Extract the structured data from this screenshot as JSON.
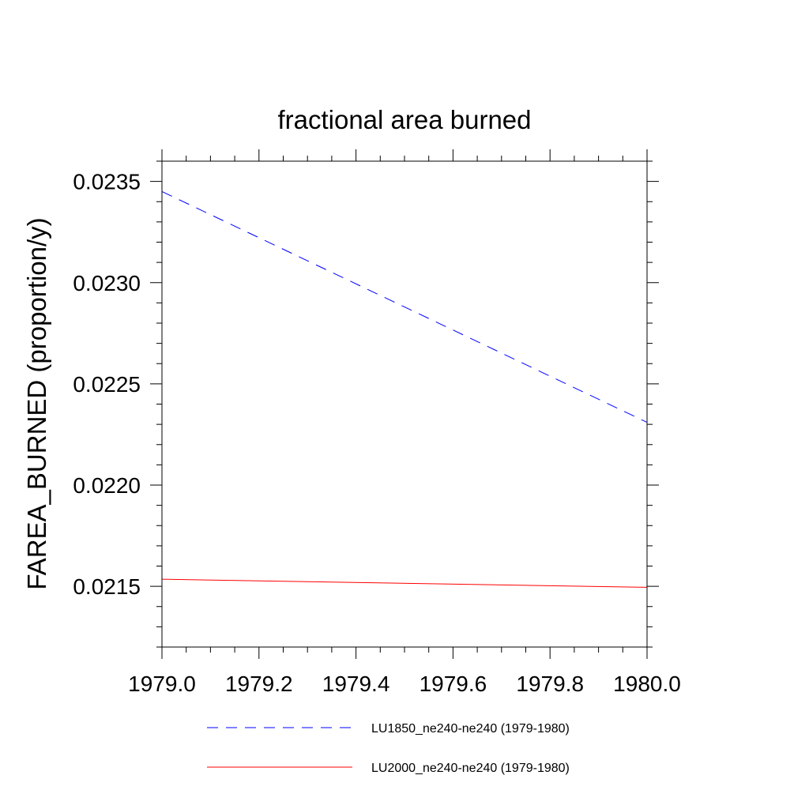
{
  "chart_data": {
    "type": "line",
    "title": "fractional area burned",
    "xlabel": "",
    "ylabel": "FAREA_BURNED  (proportion/y)",
    "xlim": [
      1979.0,
      1980.0
    ],
    "ylim": [
      0.0212,
      0.0236
    ],
    "x_ticks": [
      1979.0,
      1979.2,
      1979.4,
      1979.6,
      1979.8,
      1980.0
    ],
    "x_tick_labels": [
      "1979.0",
      "1979.2",
      "1979.4",
      "1979.6",
      "1979.8",
      "1980.0"
    ],
    "y_ticks": [
      0.0215,
      0.022,
      0.0225,
      0.023,
      0.0235
    ],
    "y_tick_labels": [
      "0.0215",
      "0.0220",
      "0.0225",
      "0.0230",
      "0.0235"
    ],
    "grid": false,
    "legend_position": "bottom",
    "series": [
      {
        "name": "LU1850_ne240-ne240 (1979-1980)",
        "x": [
          1979.0,
          1980.0
        ],
        "values": [
          0.02345,
          0.02231
        ],
        "color": "#0000ff",
        "style": "dashed"
      },
      {
        "name": "LU2000_ne240-ne240 (1979-1980)",
        "x": [
          1979.0,
          1980.0
        ],
        "values": [
          0.021535,
          0.021495
        ],
        "color": "#ff0000",
        "style": "solid"
      }
    ]
  }
}
